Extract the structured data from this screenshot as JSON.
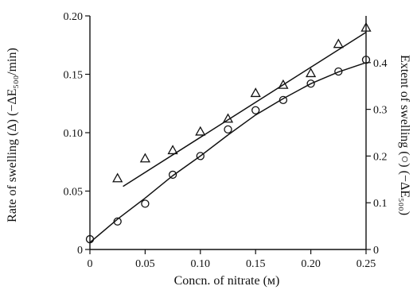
{
  "chart_data": {
    "type": "scatter",
    "xlabel": "Concn. of nitrate (м)",
    "ylabel_left": "Rate of swelling (Δ) (−ΔE₅₀₀/min)",
    "ylabel_right": "Extent of swelling (○) (−ΔE₅₀₀)",
    "xlim": [
      0,
      0.25
    ],
    "ylim_left": [
      0,
      0.2
    ],
    "ylim_right": [
      0,
      0.5
    ],
    "x_ticks": [
      "0",
      "0.05",
      "0.10",
      "0.15",
      "0.20",
      "0.25"
    ],
    "y_left_ticks": [
      "0",
      "0.05",
      "0.10",
      "0.15",
      "0.20"
    ],
    "y_right_ticks": [
      "0",
      "0.1",
      "0.2",
      "0.3",
      "0.4"
    ],
    "grid": false,
    "series": [
      {
        "marker": "triangle",
        "axis": "left",
        "x": [
          0.025,
          0.05,
          0.075,
          0.1,
          0.125,
          0.15,
          0.175,
          0.2,
          0.225,
          0.25
        ],
        "y": [
          0.061,
          0.078,
          0.085,
          0.101,
          0.112,
          0.134,
          0.141,
          0.151,
          0.176,
          0.19
        ],
        "fit": [
          [
            0.03,
            0.054
          ],
          [
            0.25,
            0.186
          ]
        ]
      },
      {
        "marker": "circle",
        "axis": "right",
        "x": [
          0,
          0.025,
          0.05,
          0.075,
          0.1,
          0.125,
          0.15,
          0.175,
          0.2,
          0.225,
          0.25
        ],
        "y": [
          0.022,
          0.06,
          0.098,
          0.16,
          0.2,
          0.257,
          0.298,
          0.32,
          0.355,
          0.381,
          0.406
        ],
        "fit": [
          [
            0,
            0.015
          ],
          [
            0.025,
            0.065
          ],
          [
            0.05,
            0.11
          ],
          [
            0.075,
            0.158
          ],
          [
            0.1,
            0.2
          ],
          [
            0.125,
            0.245
          ],
          [
            0.15,
            0.288
          ],
          [
            0.175,
            0.323
          ],
          [
            0.2,
            0.355
          ],
          [
            0.225,
            0.38
          ],
          [
            0.25,
            0.4
          ]
        ]
      }
    ]
  }
}
